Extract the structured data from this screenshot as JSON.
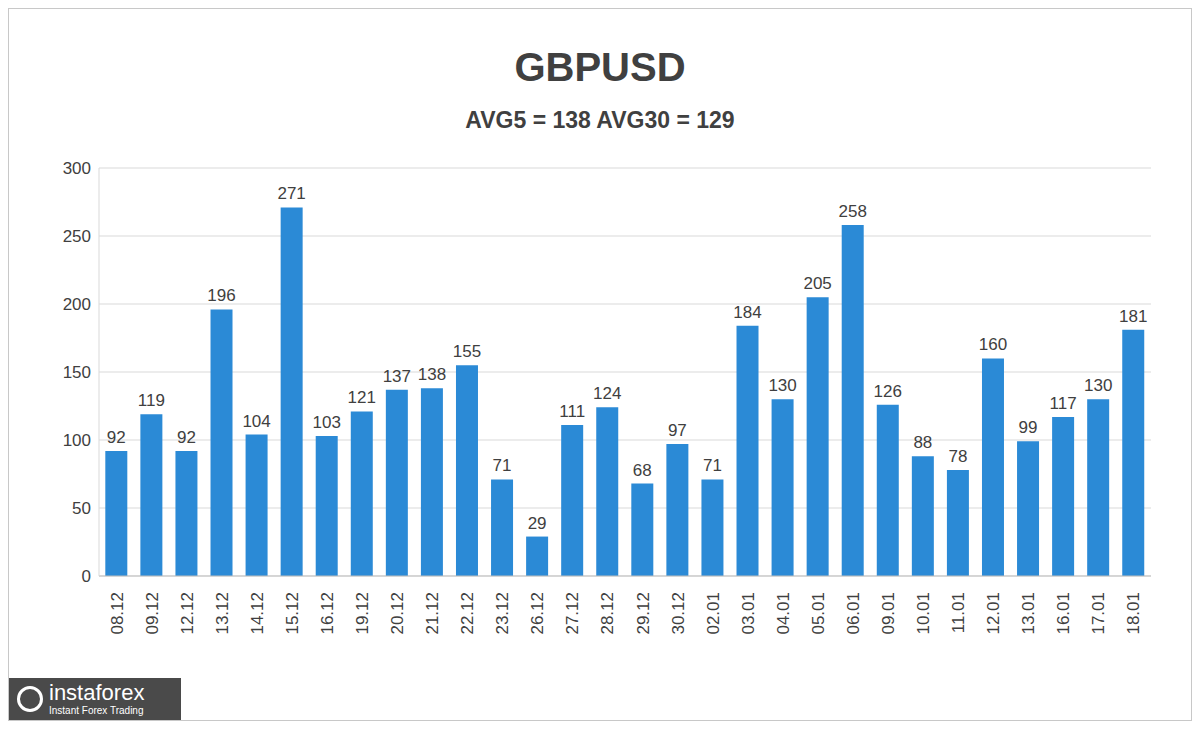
{
  "chart_data": {
    "type": "bar",
    "title": "GBPUSD",
    "subtitle": "AVG5 = 138 AVG30 = 129",
    "categories": [
      "08.12",
      "09.12",
      "12.12",
      "13.12",
      "14.12",
      "15.12",
      "16.12",
      "19.12",
      "20.12",
      "21.12",
      "22.12",
      "23.12",
      "26.12",
      "27.12",
      "28.12",
      "29.12",
      "30.12",
      "02.01",
      "03.01",
      "04.01",
      "05.01",
      "06.01",
      "09.01",
      "10.01",
      "11.01",
      "12.01",
      "13.01",
      "16.01",
      "17.01",
      "18.01"
    ],
    "values": [
      92,
      119,
      92,
      196,
      104,
      271,
      103,
      121,
      137,
      138,
      155,
      71,
      29,
      111,
      124,
      68,
      97,
      71,
      184,
      130,
      205,
      258,
      126,
      88,
      78,
      160,
      99,
      117,
      130,
      181
    ],
    "color": "#2b8ad6",
    "ylim": [
      0,
      300
    ],
    "yticks": [
      0,
      50,
      100,
      150,
      200,
      250,
      300
    ],
    "grid": true,
    "data_labels": true,
    "annotations": [
      "instaforex",
      "Instant Forex Trading"
    ]
  }
}
